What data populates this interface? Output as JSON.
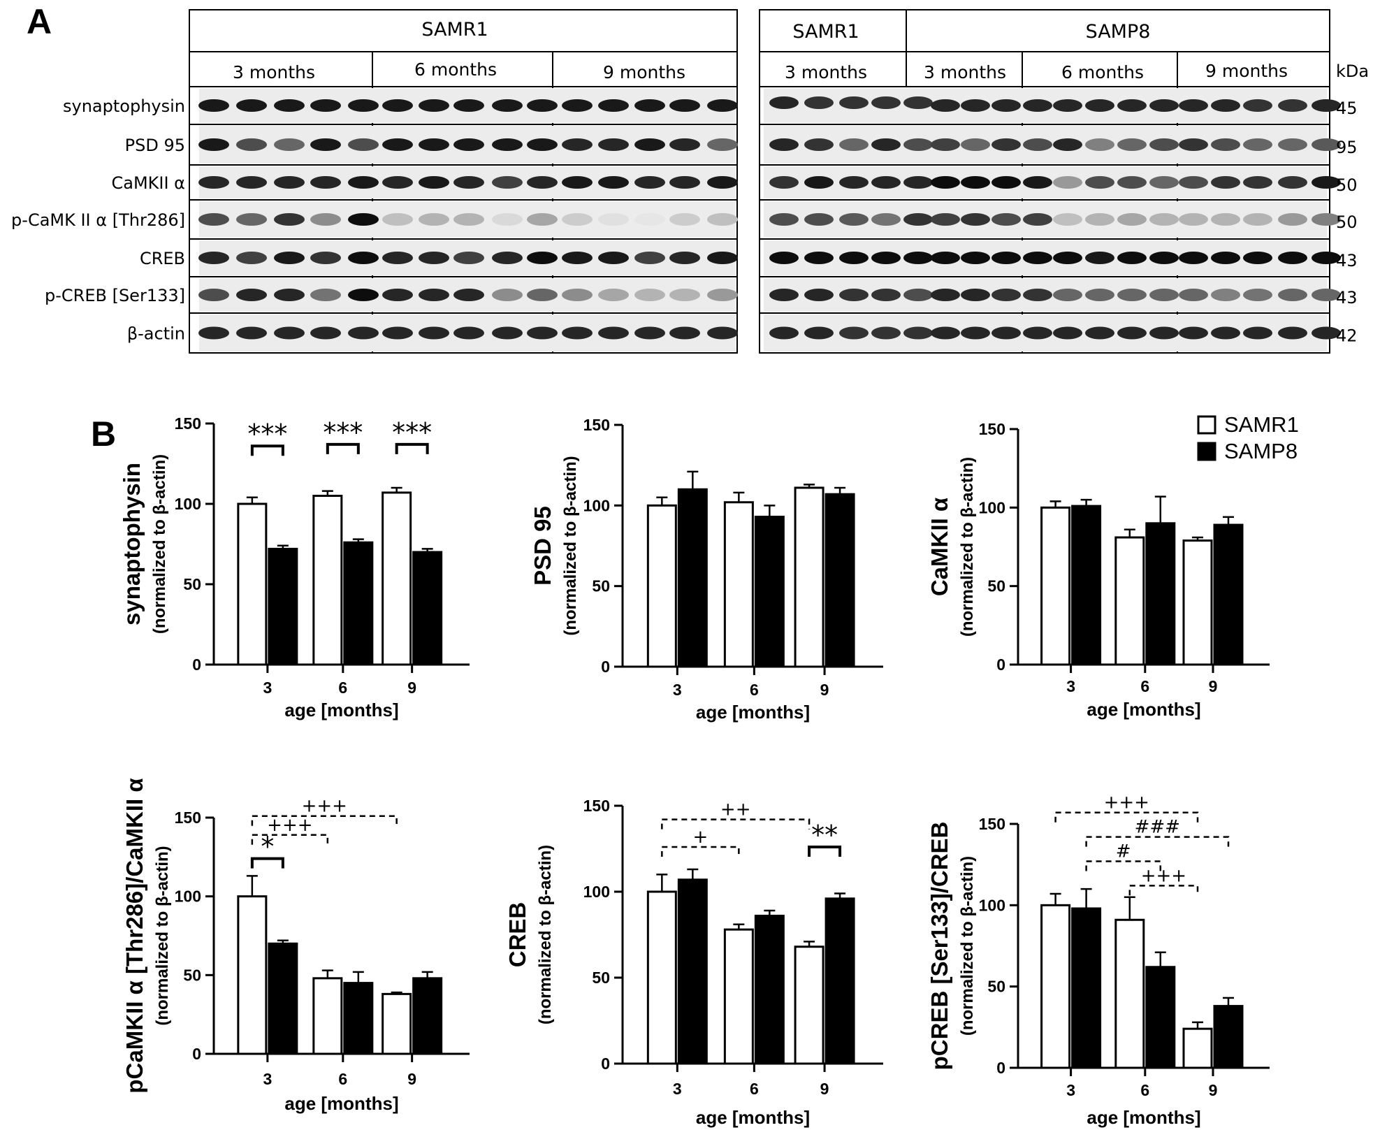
{
  "panel_a": {
    "letter": "A",
    "left_blot": {
      "strain": "SAMR1",
      "ages": [
        "3 months",
        "6 months",
        "9 months"
      ]
    },
    "right_blot": {
      "strain_a": "SAMR1",
      "strain_b": "SAMP8",
      "ages": [
        "3 months",
        "3 months",
        "6 months",
        "9 months"
      ]
    },
    "kda_header": "kDa",
    "rows": [
      {
        "label": "synaptophysin",
        "kda": "45"
      },
      {
        "label": "PSD 95",
        "kda": "95"
      },
      {
        "label": "CaMKII α",
        "kda": "50"
      },
      {
        "label": "p-CaMK II α [Thr286]",
        "kda": "50"
      },
      {
        "label": "CREB",
        "kda": "43"
      },
      {
        "label": "p-CREB [Ser133]",
        "kda": "43"
      },
      {
        "label": "β-actin",
        "kda": "42"
      }
    ]
  },
  "panel_b": {
    "letter": "B",
    "legend": [
      {
        "name": "SAMR1",
        "fill": "#ffffff"
      },
      {
        "name": "SAMP8",
        "fill": "#000000"
      }
    ]
  },
  "chart_data": [
    {
      "type": "bar",
      "ylabel": "synaptophysin",
      "ylabel_sub": "(normalized to β-actin)",
      "xlabel": "age [months]",
      "categories": [
        "3",
        "6",
        "9"
      ],
      "ylim": [
        0,
        150
      ],
      "yticks": [
        "0",
        "50",
        "100",
        "150"
      ],
      "series": [
        {
          "name": "SAMR1",
          "values": [
            100,
            105,
            107
          ],
          "errors": [
            4,
            3,
            3
          ]
        },
        {
          "name": "SAMP8",
          "values": [
            72,
            76,
            70
          ],
          "errors": [
            2,
            2,
            2
          ]
        }
      ],
      "annotations": [
        {
          "text": "***",
          "style": "solid",
          "from": [
            0,
            0
          ],
          "to": [
            0,
            1
          ],
          "y": 136
        },
        {
          "text": "***",
          "style": "solid",
          "from": [
            1,
            0
          ],
          "to": [
            1,
            1
          ],
          "y": 137
        },
        {
          "text": "***",
          "style": "solid",
          "from": [
            2,
            0
          ],
          "to": [
            2,
            1
          ],
          "y": 137
        }
      ]
    },
    {
      "type": "bar",
      "ylabel": "PSD 95",
      "ylabel_sub": "(normalized to β-actin)",
      "xlabel": "age [months]",
      "categories": [
        "3",
        "6",
        "9"
      ],
      "ylim": [
        0,
        150
      ],
      "yticks": [
        "0",
        "50",
        "100",
        "150"
      ],
      "series": [
        {
          "name": "SAMR1",
          "values": [
            100,
            102,
            111
          ],
          "errors": [
            5,
            6,
            2
          ]
        },
        {
          "name": "SAMP8",
          "values": [
            110,
            93,
            107
          ],
          "errors": [
            11,
            7,
            4
          ]
        }
      ],
      "annotations": []
    },
    {
      "type": "bar",
      "ylabel": "CaMKII α",
      "ylabel_sub": "(normalized to β-actin)",
      "xlabel": "age [months]",
      "categories": [
        "3",
        "6",
        "9"
      ],
      "ylim": [
        0,
        150
      ],
      "yticks": [
        "0",
        "50",
        "100",
        "150"
      ],
      "series": [
        {
          "name": "SAMR1",
          "values": [
            100,
            81,
            79
          ],
          "errors": [
            4,
            5,
            2
          ]
        },
        {
          "name": "SAMP8",
          "values": [
            101,
            90,
            89
          ],
          "errors": [
            4,
            17,
            5
          ]
        }
      ],
      "annotations": []
    },
    {
      "type": "bar",
      "ylabel": "pCaMKII α [Thr286]/CaMKII α",
      "ylabel_sub": "(normalized to β-actin)",
      "xlabel": "age [months]",
      "categories": [
        "3",
        "6",
        "9"
      ],
      "ylim": [
        0,
        150
      ],
      "yticks": [
        "0",
        "50",
        "100",
        "150"
      ],
      "series": [
        {
          "name": "SAMR1",
          "values": [
            100,
            48,
            38
          ],
          "errors": [
            13,
            5,
            1
          ]
        },
        {
          "name": "SAMP8",
          "values": [
            70,
            45,
            48
          ],
          "errors": [
            2,
            7,
            4
          ]
        }
      ],
      "annotations": [
        {
          "text": "+++",
          "style": "dashed",
          "from": [
            0,
            0
          ],
          "to": [
            2,
            0
          ],
          "y": 151
        },
        {
          "text": "+++",
          "style": "dashed",
          "from": [
            0,
            0
          ],
          "to": [
            1,
            0
          ],
          "y": 139
        },
        {
          "text": "*",
          "style": "solid",
          "from": [
            0,
            0
          ],
          "to": [
            0,
            1
          ],
          "y": 124
        }
      ]
    },
    {
      "type": "bar",
      "ylabel": "CREB",
      "ylabel_sub": "(normalized to β-actin)",
      "xlabel": "age [months]",
      "categories": [
        "3",
        "6",
        "9"
      ],
      "ylim": [
        0,
        150
      ],
      "yticks": [
        "0",
        "50",
        "100",
        "150"
      ],
      "series": [
        {
          "name": "SAMR1",
          "values": [
            100,
            78,
            68
          ],
          "errors": [
            10,
            3,
            3
          ]
        },
        {
          "name": "SAMP8",
          "values": [
            107,
            86,
            96
          ],
          "errors": [
            6,
            3,
            3
          ]
        }
      ],
      "annotations": [
        {
          "text": "++",
          "style": "dashed",
          "from": [
            0,
            0
          ],
          "to": [
            2,
            0
          ],
          "y": 142
        },
        {
          "text": "+",
          "style": "dashed",
          "from": [
            0,
            0
          ],
          "to": [
            1,
            0
          ],
          "y": 126
        },
        {
          "text": "**",
          "style": "solid",
          "from": [
            2,
            0
          ],
          "to": [
            2,
            1
          ],
          "y": 126
        }
      ]
    },
    {
      "type": "bar",
      "ylabel": "pCREB [Ser133]/CREB",
      "ylabel_sub": "(normalized to β-actin)",
      "xlabel": "age [months]",
      "categories": [
        "3",
        "6",
        "9"
      ],
      "ylim": [
        0,
        150
      ],
      "yticks": [
        "0",
        "50",
        "100",
        "150"
      ],
      "series": [
        {
          "name": "SAMR1",
          "values": [
            100,
            91,
            24
          ],
          "errors": [
            7,
            14,
            4
          ]
        },
        {
          "name": "SAMP8",
          "values": [
            98,
            62,
            38
          ],
          "errors": [
            12,
            9,
            5
          ]
        }
      ],
      "annotations": [
        {
          "text": "+++",
          "style": "dashed",
          "from": [
            0,
            0
          ],
          "to": [
            2,
            0
          ],
          "y": 157
        },
        {
          "text": "###",
          "style": "dashed",
          "from": [
            0,
            1
          ],
          "to": [
            2,
            1
          ],
          "y": 142
        },
        {
          "text": "#",
          "style": "dashed",
          "from": [
            0,
            1
          ],
          "to": [
            1,
            1
          ],
          "y": 127
        },
        {
          "text": "+++",
          "style": "dashed",
          "from": [
            1,
            0
          ],
          "to": [
            2,
            0
          ],
          "y": 112
        }
      ]
    }
  ]
}
